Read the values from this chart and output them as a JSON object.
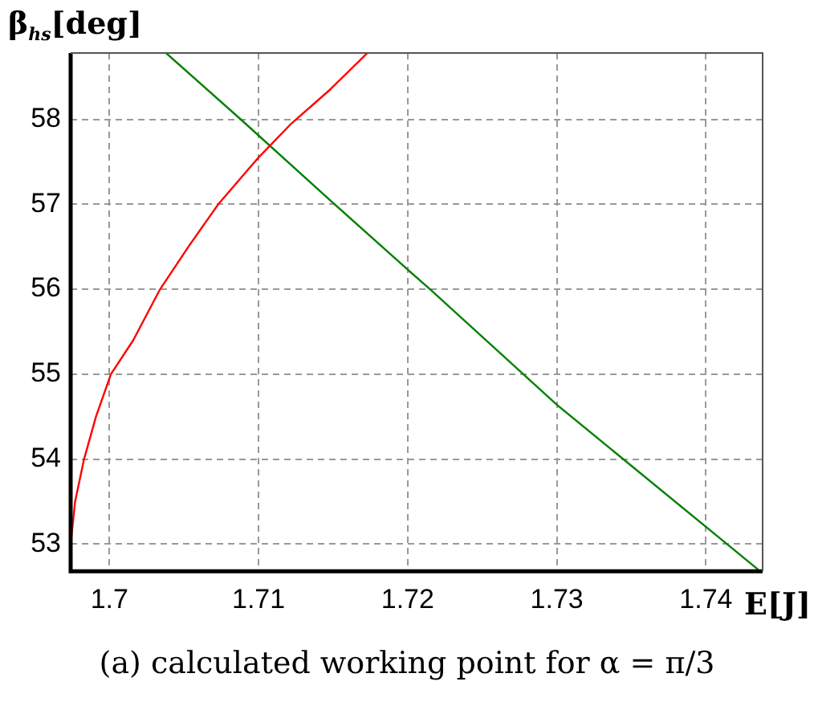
{
  "chart_data": {
    "type": "line",
    "xlabel": "E[J]",
    "ylabel": "β$_{hs}$[deg]",
    "annotations": [
      "(a) calculated working point for α = π/3"
    ],
    "xlim": [
      1.6974,
      1.7438
    ],
    "xticks": [
      1.7,
      1.71,
      1.72,
      1.73,
      1.74
    ],
    "ylim": [
      52.68,
      58.78
    ],
    "yticks": [
      53,
      54,
      55,
      56,
      57,
      58
    ],
    "grid": true,
    "legend": false,
    "marker": "none",
    "line_style": "solid",
    "series": [
      {
        "color": "#ff0000",
        "x": [
          1.6974,
          1.6977,
          1.6983,
          1.6991,
          1.7001,
          1.7016,
          1.7034,
          1.7053,
          1.7073,
          1.7095,
          1.71,
          1.7122,
          1.7148,
          1.7173
        ],
        "values": [
          53.0,
          53.5,
          54.0,
          54.5,
          55.0,
          55.4,
          56.0,
          56.5,
          57.0,
          57.45,
          57.55,
          57.95,
          58.35,
          58.78
        ]
      },
      {
        "color": "#008000",
        "x": [
          1.7038,
          1.7088,
          1.7151,
          1.72,
          1.7215,
          1.73,
          1.7435
        ],
        "values": [
          58.78,
          58.0,
          57.0,
          56.23,
          56.0,
          54.64,
          52.7
        ]
      }
    ]
  }
}
